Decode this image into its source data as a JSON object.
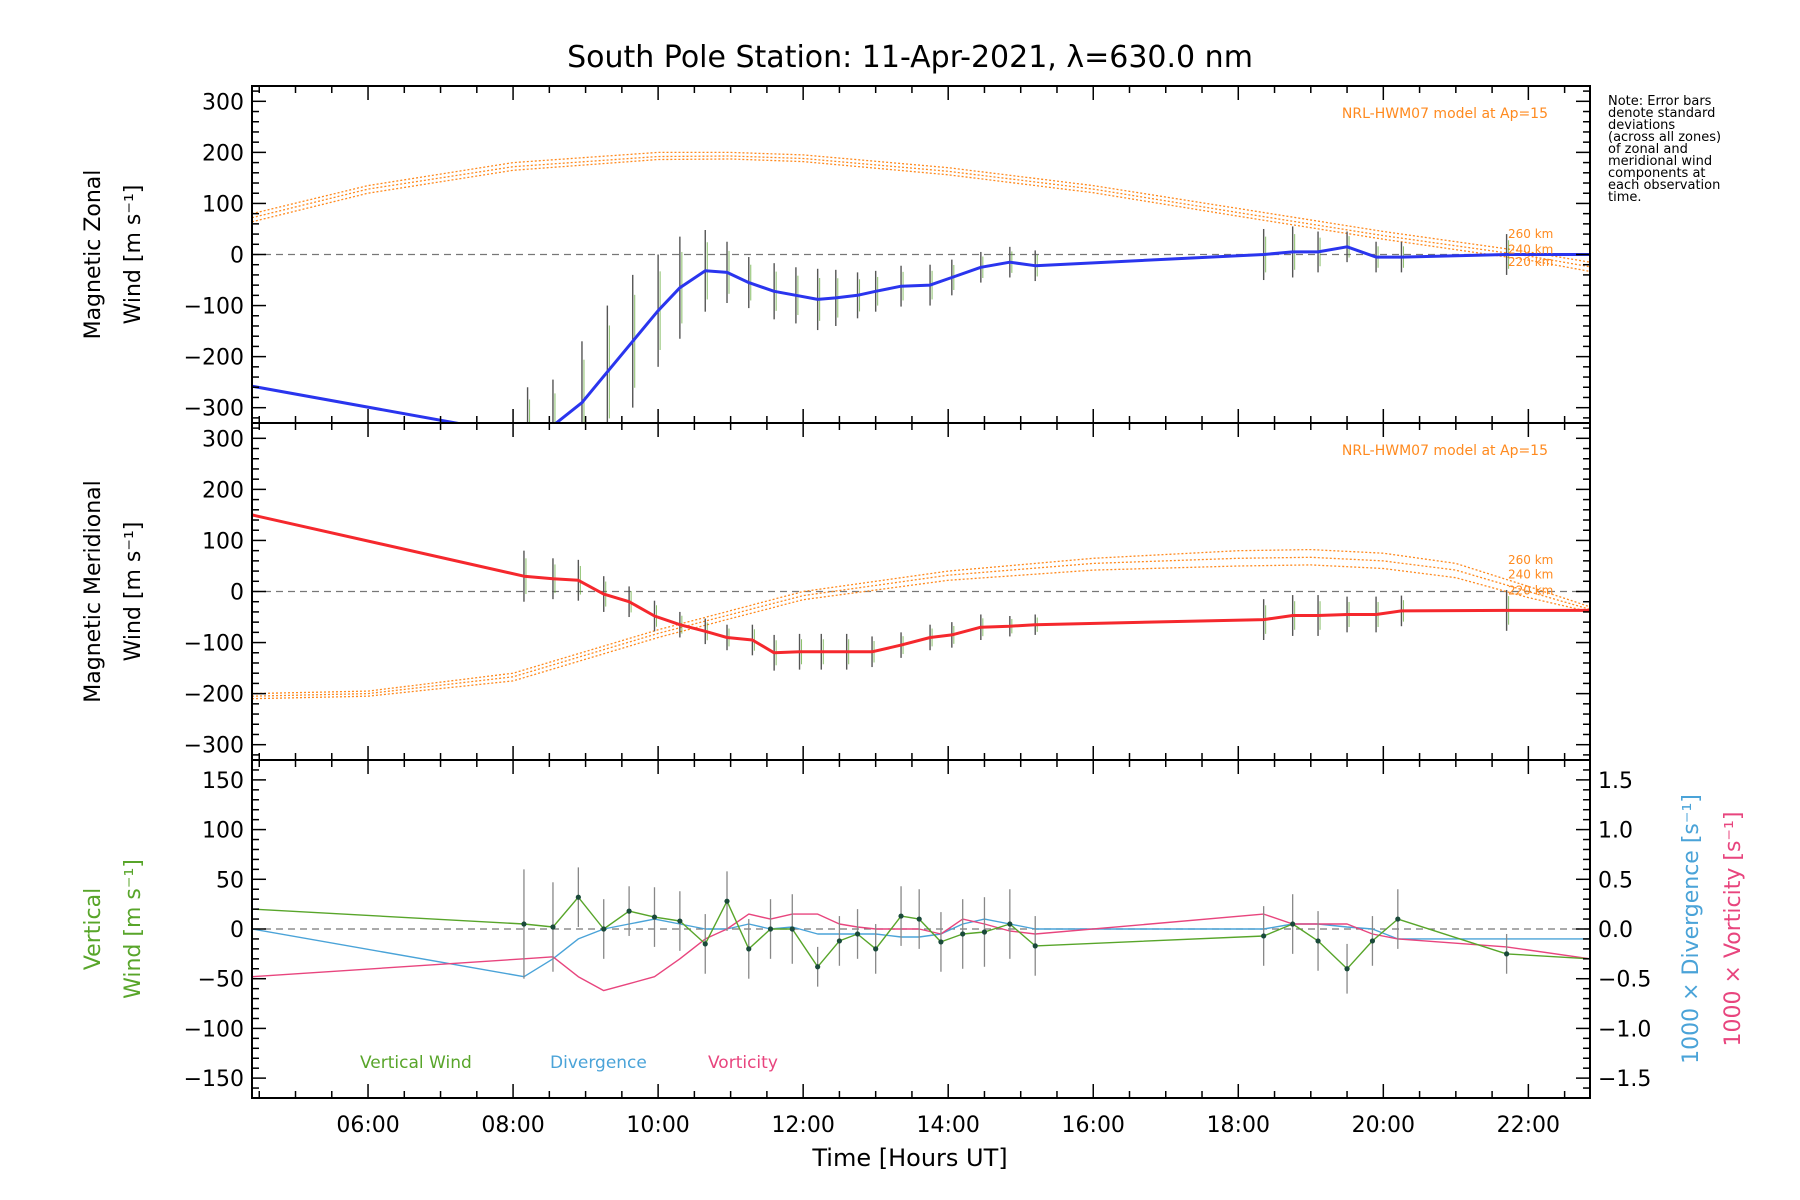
{
  "colors": {
    "zonal": "#2a35ee",
    "meridional": "#f5282d",
    "model": "#ff8a1f",
    "vertical": "#58a52a",
    "divergence": "#4aa3d8",
    "vorticity": "#e8457e",
    "zero": "#777777",
    "errbar": "#555555",
    "axis": "#000000"
  },
  "note_lines": [
    "Note: Error bars",
    "denote standard",
    "deviations",
    "(across all zones)",
    "of zonal and",
    "meridional wind",
    "components at",
    "each observation",
    "time."
  ],
  "chart_data": {
    "title": "South Pole Station: 11-Apr-2021, λ=630.0 nm",
    "xlabel": "Time [Hours UT]",
    "xlim": [
      4.4,
      22.85
    ],
    "xticks": [
      6,
      8,
      10,
      12,
      14,
      16,
      18,
      20,
      22
    ],
    "xtick_labels": [
      "06:00",
      "08:00",
      "10:00",
      "12:00",
      "14:00",
      "16:00",
      "18:00",
      "20:00",
      "22:00"
    ],
    "panels": [
      {
        "id": "zonal",
        "type": "line",
        "ylabel_line1": "Magnetic Zonal",
        "ylabel_line2": "Wind [m s⁻¹]",
        "ylim": [
          -330,
          330
        ],
        "yticks": [
          -300,
          -200,
          -100,
          0,
          100,
          200,
          300
        ],
        "ytick_labels": [
          "−300",
          "−200",
          "−100",
          "0",
          "100",
          "200",
          "300"
        ],
        "model_label": "NRL-HWM07 model at Ap=15",
        "altitude_labels": [
          "260 km",
          "240 km",
          "220 km"
        ],
        "altitude_label_values": [
          40,
          10,
          -15
        ],
        "model_curves": [
          {
            "x": [
              4.4,
              6,
              8,
              10,
              11,
              12,
              14,
              16,
              18,
              20,
              22,
              22.85
            ],
            "y": [
              80,
              135,
              180,
              200,
              200,
              195,
              170,
              135,
              90,
              45,
              5,
              -15
            ]
          },
          {
            "x": [
              4.4,
              6,
              8,
              10,
              11,
              12,
              14,
              16,
              18,
              20,
              22,
              22.85
            ],
            "y": [
              72,
              128,
              172,
              192,
              193,
              188,
              163,
              128,
              82,
              37,
              -3,
              -24
            ]
          },
          {
            "x": [
              4.4,
              6,
              8,
              10,
              11,
              12,
              14,
              16,
              18,
              20,
              22,
              22.85
            ],
            "y": [
              64,
              120,
              165,
              186,
              187,
              182,
              156,
              121,
              75,
              30,
              -11,
              -33
            ]
          }
        ],
        "series": {
          "name": "Magnetic Zonal Wind",
          "x": [
            4.4,
            7.6,
            8.2,
            8.55,
            8.95,
            9.3,
            9.65,
            10,
            10.3,
            10.65,
            10.95,
            11.25,
            11.6,
            11.9,
            12.2,
            12.45,
            12.75,
            13,
            13.35,
            13.75,
            14.05,
            14.45,
            14.85,
            15.2,
            18.35,
            18.75,
            19.1,
            19.5,
            19.9,
            20.25,
            21.7,
            22.85
          ],
          "y": [
            -258,
            -340,
            -340,
            -335,
            -290,
            -230,
            -170,
            -110,
            -65,
            -32,
            -35,
            -55,
            -72,
            -80,
            -88,
            -85,
            -80,
            -72,
            -62,
            -60,
            -45,
            -25,
            -15,
            -22,
            0,
            5,
            5,
            15,
            -5,
            -5,
            0,
            0
          ],
          "err": [
            0,
            0,
            80,
            90,
            120,
            130,
            130,
            110,
            100,
            80,
            60,
            50,
            55,
            55,
            60,
            55,
            45,
            40,
            40,
            40,
            35,
            30,
            30,
            30,
            50,
            50,
            40,
            30,
            30,
            30,
            40,
            0
          ]
        }
      },
      {
        "id": "meridional",
        "type": "line",
        "ylabel_line1": "Magnetic Meridional",
        "ylabel_line2": "Wind [m s⁻¹]",
        "ylim": [
          -330,
          330
        ],
        "yticks": [
          -300,
          -200,
          -100,
          0,
          100,
          200,
          300
        ],
        "ytick_labels": [
          "−300",
          "−200",
          "−100",
          "0",
          "100",
          "200",
          "300"
        ],
        "model_label": "NRL-HWM07 model at Ap=15",
        "altitude_labels": [
          "260 km",
          "240 km",
          "220 km"
        ],
        "altitude_label_values": [
          62,
          33,
          2
        ],
        "model_curves": [
          {
            "x": [
              4.4,
              6,
              8,
              10,
              12,
              14,
              16,
              18,
              19,
              20,
              21,
              22,
              22.85
            ],
            "y": [
              -200,
              -195,
              -160,
              -75,
              0,
              40,
              65,
              80,
              82,
              75,
              55,
              10,
              -30
            ]
          },
          {
            "x": [
              4.4,
              6,
              8,
              10,
              12,
              14,
              16,
              18,
              19,
              20,
              21,
              22,
              22.85
            ],
            "y": [
              -205,
              -200,
              -167,
              -82,
              -8,
              32,
              55,
              65,
              67,
              60,
              42,
              0,
              -35
            ]
          },
          {
            "x": [
              4.4,
              6,
              8,
              10,
              12,
              14,
              16,
              18,
              19,
              20,
              21,
              22,
              22.85
            ],
            "y": [
              -210,
              -205,
              -175,
              -90,
              -16,
              22,
              42,
              50,
              52,
              45,
              27,
              -12,
              -40
            ]
          }
        ],
        "series": {
          "name": "Magnetic Meridional Wind",
          "x": [
            4.4,
            8.15,
            8.55,
            8.9,
            9.25,
            9.6,
            9.95,
            10.3,
            10.65,
            10.95,
            11.3,
            11.6,
            11.95,
            12.25,
            12.6,
            12.95,
            13.35,
            13.75,
            14.05,
            14.45,
            14.85,
            15.2,
            18.35,
            18.75,
            19.1,
            19.5,
            19.9,
            20.25,
            21.7,
            22.85
          ],
          "y": [
            150,
            30,
            25,
            22,
            -5,
            -20,
            -48,
            -65,
            -78,
            -90,
            -95,
            -120,
            -118,
            -118,
            -118,
            -118,
            -105,
            -90,
            -85,
            -70,
            -68,
            -65,
            -55,
            -47,
            -47,
            -45,
            -45,
            -38,
            -37,
            -37
          ],
          "err": [
            0,
            50,
            40,
            40,
            35,
            30,
            30,
            25,
            25,
            25,
            30,
            35,
            35,
            35,
            35,
            30,
            25,
            25,
            25,
            25,
            20,
            20,
            40,
            40,
            40,
            35,
            35,
            30,
            40,
            0
          ]
        }
      },
      {
        "id": "vertical",
        "type": "line",
        "ylabel_line1": "Vertical",
        "ylabel_line2": "Wind [m s⁻¹]",
        "ylim": [
          -170,
          170
        ],
        "yticks": [
          -150,
          -100,
          -50,
          0,
          50,
          100,
          150
        ],
        "ytick_labels": [
          "−150",
          "−100",
          "−50",
          "0",
          "50",
          "100",
          "150"
        ],
        "y2lim": [
          -1.7,
          1.7
        ],
        "y2ticks": [
          -1.5,
          -1.0,
          -0.5,
          0.0,
          0.5,
          1.0,
          1.5
        ],
        "y2tick_labels": [
          "−1.5",
          "−1.0",
          "−0.5",
          "0.0",
          "0.5",
          "1.0",
          "1.5"
        ],
        "y2label_a": "1000 × Divergence [s⁻¹]",
        "y2label_b": "1000 × Vorticity [s⁻¹]",
        "legend": [
          "Vertical Wind",
          "Divergence",
          "Vorticity"
        ],
        "series": [
          {
            "name": "Vertical Wind",
            "x": [
              4.4,
              8.15,
              8.55,
              8.9,
              9.25,
              9.6,
              9.95,
              10.3,
              10.65,
              10.95,
              11.25,
              11.55,
              11.85,
              12.2,
              12.5,
              12.75,
              13,
              13.35,
              13.6,
              13.9,
              14.2,
              14.5,
              14.85,
              15.2,
              18.35,
              18.75,
              19.1,
              19.5,
              19.85,
              20.2,
              21.7,
              22.85
            ],
            "y": [
              20,
              5,
              2,
              32,
              0,
              18,
              12,
              8,
              -15,
              28,
              -20,
              0,
              0,
              -38,
              -12,
              -5,
              -20,
              13,
              10,
              -13,
              -5,
              -3,
              5,
              -17,
              -7,
              5,
              -12,
              -40,
              -12,
              10,
              -25,
              -30
            ],
            "err": [
              0,
              55,
              45,
              30,
              30,
              25,
              30,
              30,
              30,
              30,
              30,
              30,
              35,
              20,
              25,
              25,
              25,
              30,
              30,
              30,
              35,
              35,
              35,
              30,
              30,
              30,
              30,
              25,
              25,
              30,
              20,
              0
            ]
          },
          {
            "name": "Divergence",
            "axis": "right",
            "x": [
              4.4,
              8.15,
              8.55,
              8.9,
              9.25,
              9.6,
              9.95,
              10.3,
              10.65,
              10.95,
              11.25,
              11.55,
              11.85,
              12.2,
              12.5,
              12.75,
              13,
              13.35,
              13.6,
              13.9,
              14.2,
              14.5,
              14.85,
              15.2,
              18.35,
              18.75,
              19.1,
              19.5,
              19.85,
              20.2,
              21.7,
              22.85
            ],
            "y": [
              0.0,
              -0.48,
              -0.3,
              -0.1,
              0.0,
              0.05,
              0.1,
              0.05,
              0.0,
              0.0,
              0.05,
              0.0,
              0.02,
              -0.05,
              -0.05,
              -0.05,
              -0.05,
              -0.08,
              -0.08,
              -0.05,
              0.05,
              0.1,
              0.05,
              0.0,
              0.0,
              0.05,
              0.05,
              0.02,
              0.0,
              -0.1,
              -0.1,
              -0.1
            ]
          },
          {
            "name": "Vorticity",
            "axis": "right",
            "x": [
              4.4,
              8.15,
              8.55,
              8.9,
              9.25,
              9.6,
              9.95,
              10.3,
              10.65,
              10.95,
              11.25,
              11.55,
              11.85,
              12.2,
              12.5,
              12.75,
              13,
              13.35,
              13.6,
              13.9,
              14.2,
              14.5,
              14.85,
              15.2,
              18.35,
              18.75,
              19.1,
              19.5,
              19.85,
              20.2,
              21.7,
              22.85
            ],
            "y": [
              -0.48,
              -0.3,
              -0.28,
              -0.48,
              -0.62,
              -0.55,
              -0.48,
              -0.3,
              -0.1,
              0.0,
              0.15,
              0.1,
              0.15,
              0.15,
              0.05,
              0.02,
              0.0,
              0.0,
              0.0,
              -0.05,
              0.1,
              0.05,
              -0.02,
              -0.05,
              0.15,
              0.05,
              0.05,
              0.05,
              -0.05,
              -0.1,
              -0.18,
              -0.3
            ]
          }
        ]
      }
    ]
  }
}
